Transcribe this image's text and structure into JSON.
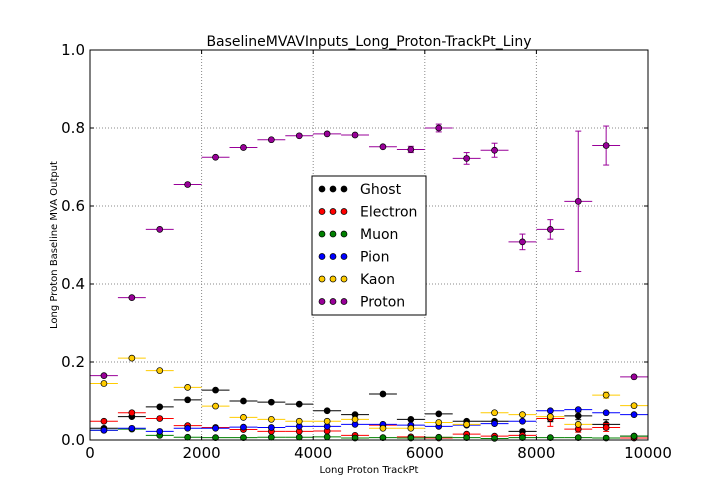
{
  "chart_data": {
    "type": "scatter",
    "title": "BaselineMVAVInputs_Long_Proton-TrackPt_Liny",
    "xlabel": "Long Proton TrackPt",
    "ylabel": "Long Proton Baseline MVA Output",
    "xlim": [
      0,
      10000
    ],
    "ylim": [
      0,
      1.0
    ],
    "xticks": [
      0,
      2000,
      4000,
      6000,
      8000,
      10000
    ],
    "yticks": [
      0.0,
      0.2,
      0.4,
      0.6,
      0.8,
      1.0
    ],
    "xtick_labels": [
      "0",
      "2000",
      "4000",
      "6000",
      "8000",
      "10000"
    ],
    "ytick_labels": [
      "0.0",
      "0.2",
      "0.4",
      "0.6",
      "0.8",
      "1.0"
    ],
    "grid": true,
    "legend_position": "center",
    "x": [
      250,
      750,
      1250,
      1750,
      2250,
      2750,
      3250,
      3750,
      4250,
      4750,
      5250,
      5750,
      6250,
      6750,
      7250,
      7750,
      8250,
      8750,
      9250,
      9750
    ],
    "x_halfwidth": 250,
    "series": [
      {
        "name": "Ghost",
        "color": "#000000",
        "values": [
          0.03,
          0.06,
          0.085,
          0.103,
          0.128,
          0.1,
          0.097,
          0.092,
          0.075,
          0.065,
          0.118,
          0.053,
          0.067,
          0.048,
          0.048,
          0.022,
          0.055,
          0.062,
          0.04,
          0.01
        ],
        "errors": [
          0.002,
          0.002,
          0.002,
          0.002,
          0.002,
          0.002,
          0.002,
          0.002,
          0.002,
          0.002,
          0.003,
          0.003,
          0.003,
          0.004,
          0.005,
          0.006,
          0.008,
          0.01,
          0.012,
          0.005
        ]
      },
      {
        "name": "Electron",
        "color": "#ff0000",
        "values": [
          0.048,
          0.07,
          0.055,
          0.037,
          0.032,
          0.027,
          0.022,
          0.022,
          0.023,
          0.012,
          0.038,
          0.008,
          0.005,
          0.015,
          0.01,
          0.012,
          0.055,
          0.028,
          0.032,
          0.005
        ],
        "errors": [
          0.002,
          0.002,
          0.002,
          0.002,
          0.002,
          0.002,
          0.002,
          0.002,
          0.002,
          0.002,
          0.003,
          0.003,
          0.003,
          0.004,
          0.004,
          0.005,
          0.02,
          0.008,
          0.01,
          0.004
        ]
      },
      {
        "name": "Muon",
        "color": "#008000",
        "values": [
          0.025,
          0.028,
          0.012,
          0.007,
          0.006,
          0.006,
          0.007,
          0.007,
          0.008,
          0.005,
          0.006,
          0.005,
          0.007,
          0.006,
          0.004,
          0.006,
          0.006,
          0.006,
          0.005,
          0.01
        ],
        "errors": [
          0.001,
          0.001,
          0.001,
          0.001,
          0.001,
          0.001,
          0.001,
          0.001,
          0.001,
          0.001,
          0.001,
          0.001,
          0.001,
          0.001,
          0.001,
          0.001,
          0.001,
          0.001,
          0.001,
          0.002
        ]
      },
      {
        "name": "Pion",
        "color": "#0000ff",
        "values": [
          0.025,
          0.03,
          0.022,
          0.03,
          0.03,
          0.033,
          0.032,
          0.035,
          0.035,
          0.04,
          0.04,
          0.038,
          0.035,
          0.038,
          0.042,
          0.048,
          0.075,
          0.078,
          0.07,
          0.065
        ],
        "errors": [
          0.001,
          0.001,
          0.001,
          0.001,
          0.001,
          0.001,
          0.001,
          0.001,
          0.001,
          0.001,
          0.001,
          0.001,
          0.001,
          0.002,
          0.002,
          0.002,
          0.003,
          0.004,
          0.004,
          0.004
        ]
      },
      {
        "name": "Kaon",
        "color": "#ffcc00",
        "values": [
          0.145,
          0.21,
          0.178,
          0.135,
          0.087,
          0.058,
          0.053,
          0.048,
          0.048,
          0.053,
          0.03,
          0.03,
          0.045,
          0.04,
          0.07,
          0.065,
          0.06,
          0.04,
          0.115,
          0.088
        ],
        "errors": [
          0.003,
          0.003,
          0.003,
          0.003,
          0.002,
          0.002,
          0.002,
          0.002,
          0.002,
          0.002,
          0.002,
          0.002,
          0.003,
          0.003,
          0.004,
          0.005,
          0.006,
          0.006,
          0.008,
          0.006
        ]
      },
      {
        "name": "Proton",
        "color": "#990099",
        "values": [
          0.165,
          0.365,
          0.54,
          0.655,
          0.725,
          0.75,
          0.77,
          0.78,
          0.785,
          0.782,
          0.752,
          0.745,
          0.8,
          0.722,
          0.743,
          0.508,
          0.54,
          0.612,
          0.755,
          0.162
        ],
        "errors": [
          0.004,
          0.004,
          0.005,
          0.005,
          0.005,
          0.004,
          0.004,
          0.004,
          0.004,
          0.005,
          0.006,
          0.008,
          0.01,
          0.015,
          0.018,
          0.02,
          0.025,
          0.18,
          0.05,
          0.004
        ]
      }
    ]
  }
}
